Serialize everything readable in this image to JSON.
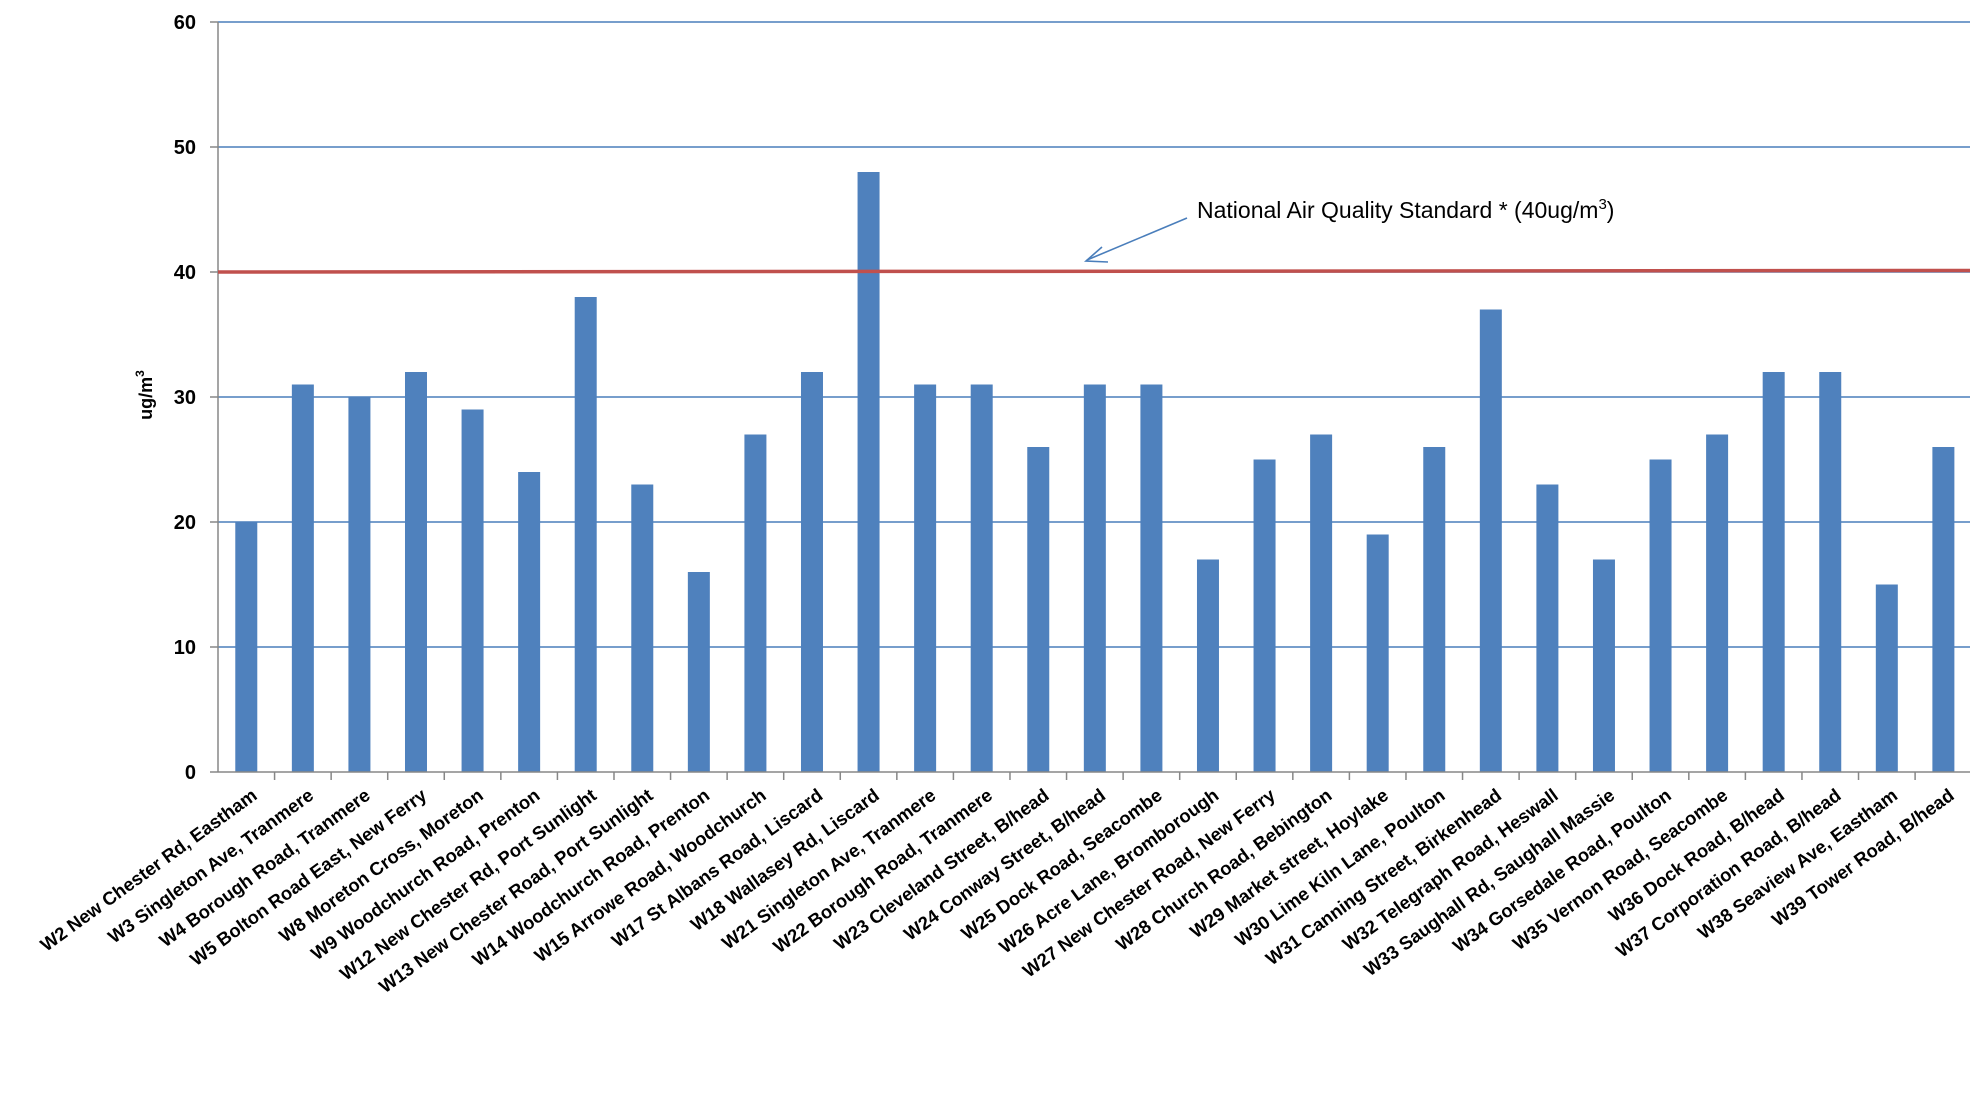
{
  "chart_data": {
    "type": "bar",
    "ylabel": "ug/m",
    "ylabel_superscript": "3",
    "ylim": [
      0,
      60
    ],
    "yticks": [
      0,
      10,
      20,
      30,
      40,
      50,
      60
    ],
    "grid": true,
    "legend": "none",
    "bar_color": "#4f81bd",
    "gridline_color": "#4a7ebb",
    "categories": [
      "W2 New Chester Rd, Eastham",
      "W3 Singleton Ave, Tranmere",
      "W4 Borough Road, Tranmere",
      "W5 Bolton Road East, New Ferry",
      "W8 Moreton Cross, Moreton",
      "W9 Woodchurch Road, Prenton",
      "W12 New Chester Rd, Port Sunlight",
      "W13 New Chester Road, Port Sunlight",
      "W14 Woodchurch Road, Prenton",
      "W15 Arrowe Road, Woodchurch",
      "W17 St Albans Road, Liscard",
      "W18 Wallasey Rd, Liscard",
      "W21 Singleton Ave, Tranmere",
      "W22 Borough Road, Tranmere",
      "W23 Cleveland Street, B/head",
      "W24 Conway Street, B/head",
      "W25 Dock Road, Seacombe",
      "W26 Acre Lane, Bromborough",
      "W27 New Chester Road, New Ferry",
      "W28 Church Road, Bebington",
      "W29 Market street, Hoylake",
      "W30 Lime Kiln Lane, Poulton",
      "W31 Canning Street, Birkenhead",
      "W32 Telegraph Road, Heswall",
      "W33 Saughall Rd, Saughall Massie",
      "W34 Gorsedale Road, Poulton",
      "W35 Vernon Road, Seacombe",
      "W36 Dock Road, B/head",
      "W37 Corporation Road, B/head",
      "W38 Seaview Ave, Eastham",
      "W39 Tower Road, B/head"
    ],
    "values": [
      20,
      31,
      30,
      32,
      29,
      24,
      38,
      23,
      16,
      27,
      32,
      48,
      31,
      31,
      26,
      31,
      31,
      17,
      25,
      27,
      19,
      26,
      37,
      23,
      17,
      25,
      27,
      32,
      32,
      15,
      26
    ],
    "reference_line": {
      "value": 40,
      "color": "#c0504d",
      "label_main": "National Air Quality Standard * (40ug/m",
      "label_sup": "3",
      "label_end": ")"
    }
  }
}
